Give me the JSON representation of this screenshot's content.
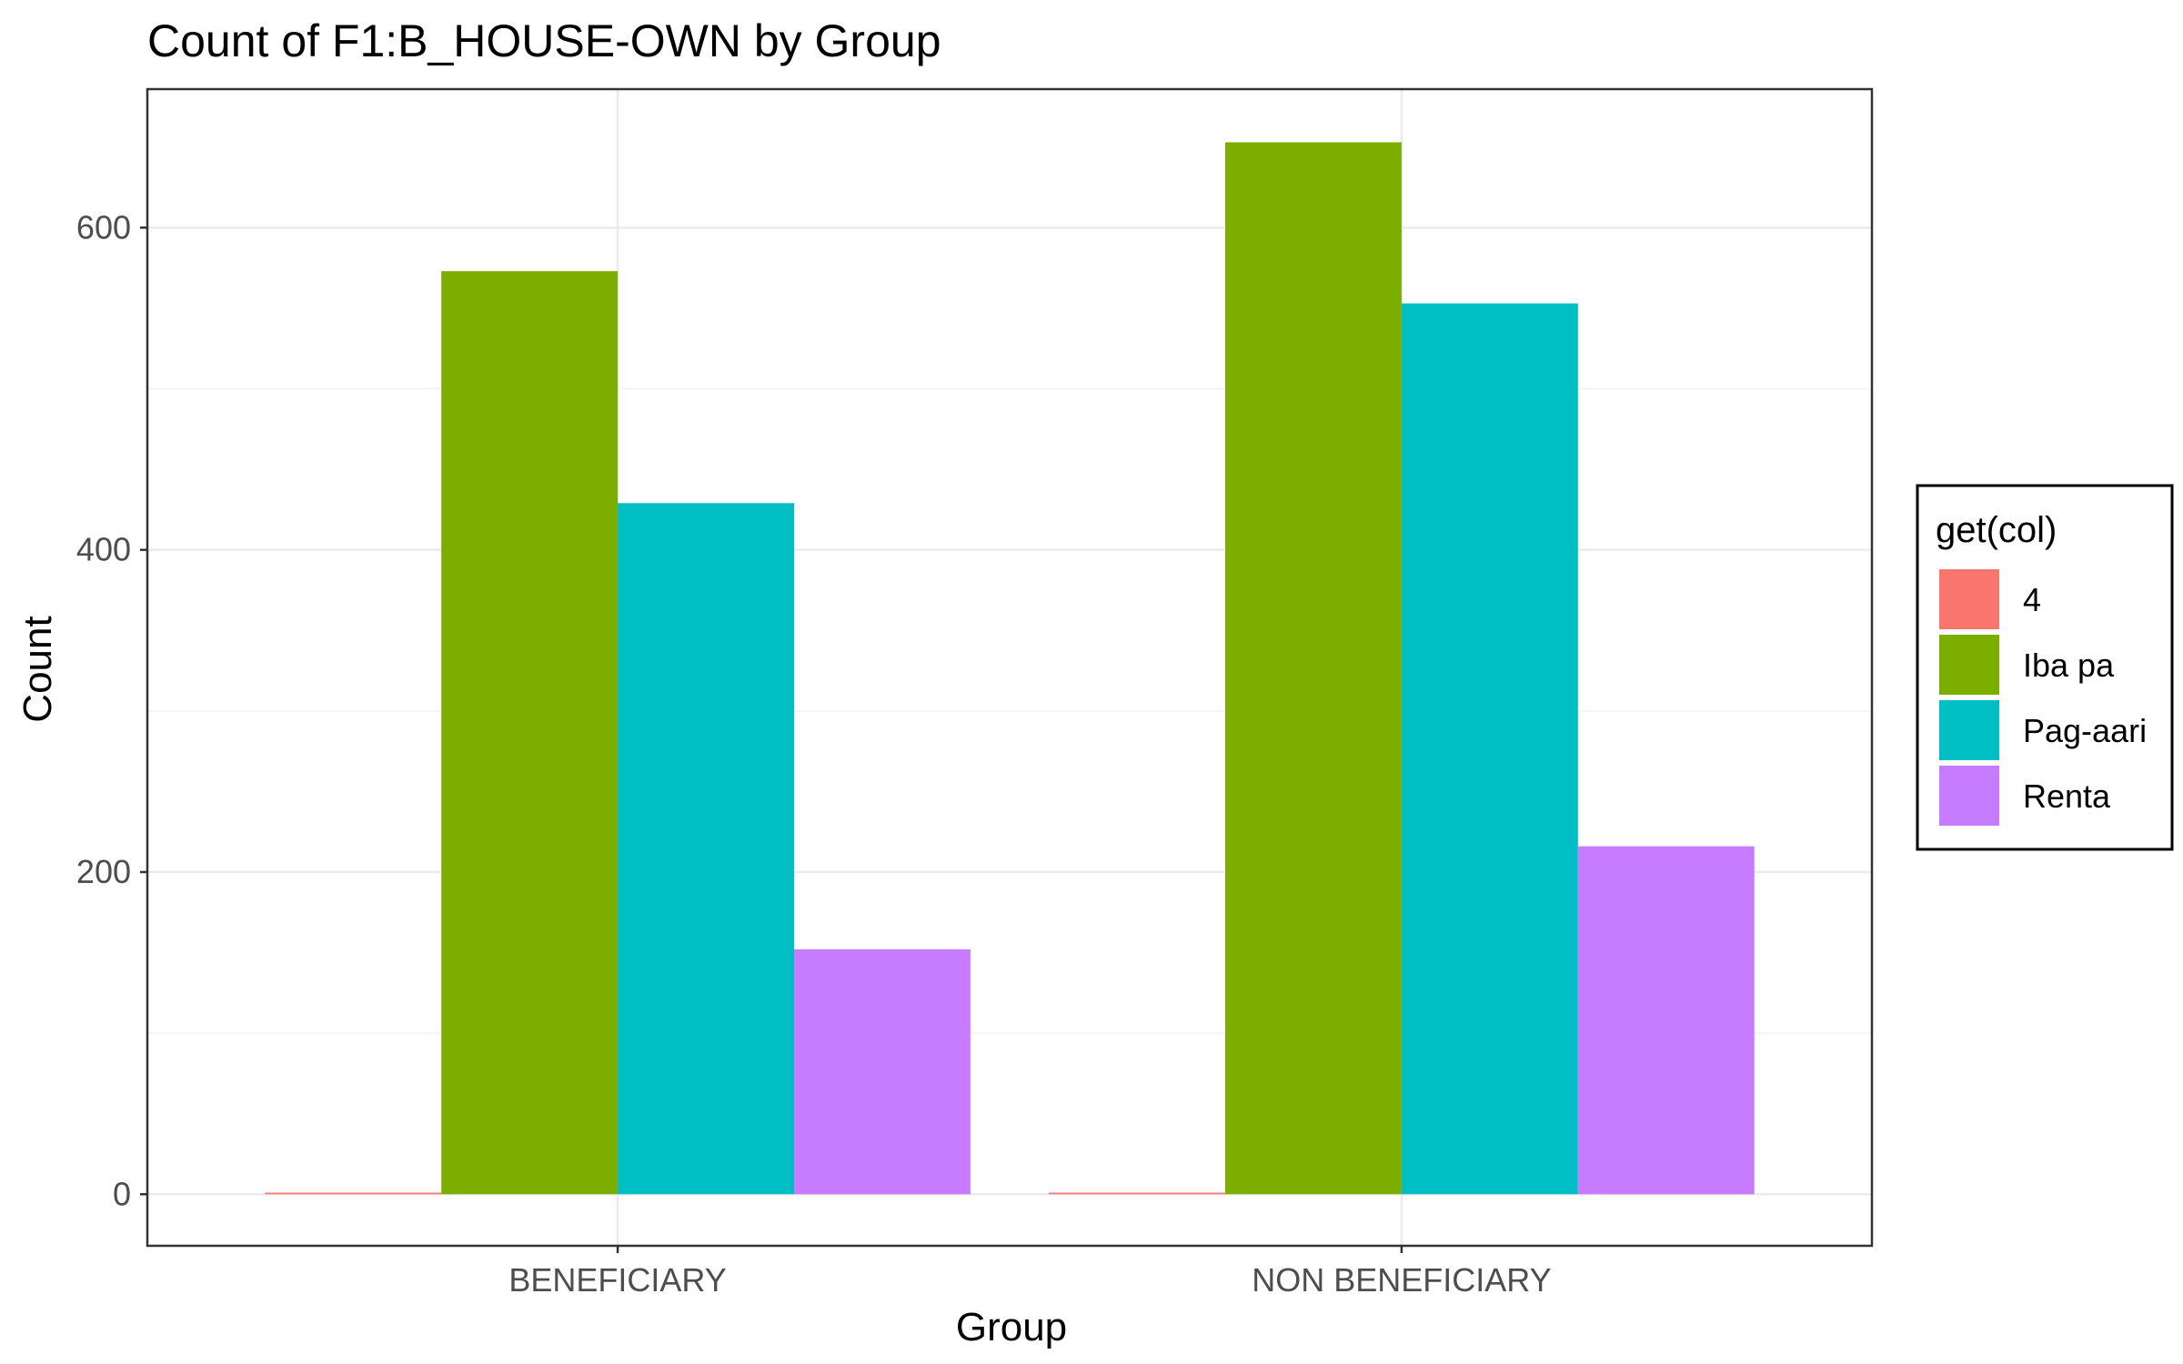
{
  "chart_data": {
    "type": "bar",
    "title": "Count of F1:B_HOUSE-OWN by Group",
    "xlabel": "Group",
    "ylabel": "Count",
    "categories": [
      "BENEFICIARY",
      "NON BENEFICIARY"
    ],
    "series": [
      {
        "name": "4",
        "color": "#F8766D",
        "values": [
          1,
          1
        ]
      },
      {
        "name": "Iba pa",
        "color": "#7CAE00",
        "values": [
          573,
          653
        ]
      },
      {
        "name": "Pag-aari",
        "color": "#00BFC4",
        "values": [
          429,
          553
        ]
      },
      {
        "name": "Renta",
        "color": "#C77CFF",
        "values": [
          152,
          216
        ]
      }
    ],
    "ylim": [
      -32,
      686
    ],
    "yticks": [
      0,
      200,
      400,
      600
    ],
    "grid": true,
    "legend": {
      "title": "get(col)",
      "position": "right"
    }
  }
}
